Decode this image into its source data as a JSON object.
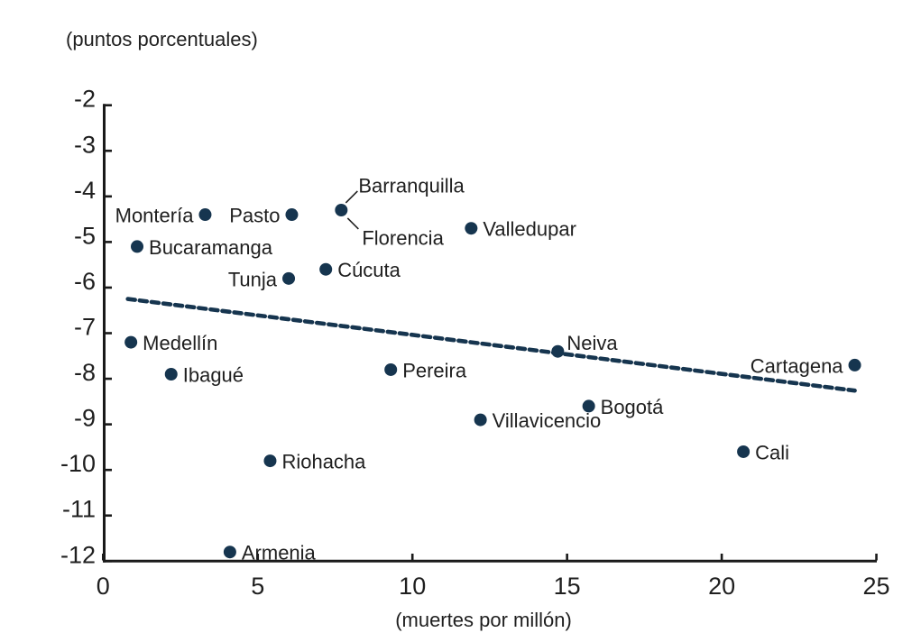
{
  "chart_data": {
    "type": "scatter",
    "title": "(puntos porcentuales)",
    "xlabel": "(muertes por millón)",
    "xlim": [
      0,
      25
    ],
    "ylim": [
      -12,
      -2
    ],
    "xticks": [
      0,
      5,
      10,
      15,
      20,
      25
    ],
    "yticks": [
      -2,
      -3,
      -4,
      -5,
      -6,
      -7,
      -8,
      -9,
      -10,
      -11,
      -12
    ],
    "grid": false,
    "legend": "none",
    "points": [
      {
        "name": "Montería",
        "x": 3.3,
        "y": -4.4,
        "label": "left"
      },
      {
        "name": "Pasto",
        "x": 6.1,
        "y": -4.4,
        "label": "left"
      },
      {
        "name": "Barranquilla",
        "x": 7.7,
        "y": -4.3,
        "label": "callout-above"
      },
      {
        "name": "Florencia",
        "x": 7.7,
        "y": -4.3,
        "label": "callout-below",
        "shares_dot_with": "Barranquilla"
      },
      {
        "name": "Valledupar",
        "x": 11.9,
        "y": -4.7,
        "label": "right"
      },
      {
        "name": "Bucaramanga",
        "x": 1.1,
        "y": -5.1,
        "label": "right"
      },
      {
        "name": "Cúcuta",
        "x": 7.2,
        "y": -5.6,
        "label": "right"
      },
      {
        "name": "Tunja",
        "x": 6.0,
        "y": -5.8,
        "label": "left"
      },
      {
        "name": "Medellín",
        "x": 0.9,
        "y": -7.2,
        "label": "right"
      },
      {
        "name": "Neiva",
        "x": 14.7,
        "y": -7.4,
        "label": "above-right"
      },
      {
        "name": "Cartagena",
        "x": 24.3,
        "y": -7.7,
        "label": "left"
      },
      {
        "name": "Pereira",
        "x": 9.3,
        "y": -7.8,
        "label": "right"
      },
      {
        "name": "Ibagué",
        "x": 2.2,
        "y": -7.9,
        "label": "right"
      },
      {
        "name": "Bogotá",
        "x": 15.7,
        "y": -8.6,
        "label": "right"
      },
      {
        "name": "Villavicencio",
        "x": 12.2,
        "y": -8.9,
        "label": "right"
      },
      {
        "name": "Cali",
        "x": 20.7,
        "y": -9.6,
        "label": "right"
      },
      {
        "name": "Riohacha",
        "x": 5.4,
        "y": -9.8,
        "label": "right"
      },
      {
        "name": "Armenia",
        "x": 4.1,
        "y": -11.8,
        "label": "right"
      }
    ],
    "trendline": {
      "style": "dashed",
      "x1": 0.8,
      "y1": -6.25,
      "x2": 24.3,
      "y2": -8.26
    },
    "colors": {
      "marker": "#16354f",
      "trend": "#16354f",
      "text": "#1f1f1f",
      "axis": "#1a1a1a"
    }
  }
}
